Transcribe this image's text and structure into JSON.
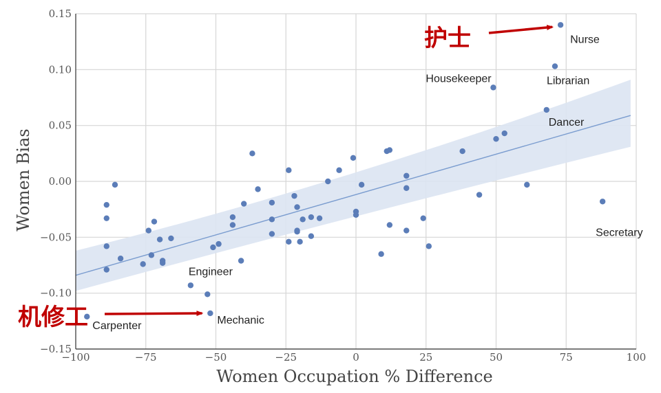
{
  "chart_data": {
    "type": "scatter",
    "xlabel": "Women Occupation % Difference",
    "ylabel": "Women Bias",
    "xlim": [
      -100,
      100
    ],
    "ylim": [
      -0.15,
      0.15
    ],
    "x_ticks": [
      -100,
      -75,
      -50,
      -25,
      0,
      25,
      50,
      75,
      100
    ],
    "y_ticks": [
      -0.15,
      -0.1,
      -0.05,
      0.0,
      0.05,
      0.1,
      0.15
    ],
    "x_tick_labels": [
      "−100",
      "−75",
      "−50",
      "−25",
      "0",
      "25",
      "50",
      "75",
      "100"
    ],
    "y_tick_labels": [
      "−0.15",
      "−0.10",
      "−0.05",
      "0.00",
      "0.05",
      "0.10",
      "0.15"
    ],
    "grid": true,
    "regression": {
      "x": [
        -100,
        98
      ],
      "y": [
        -0.084,
        0.059
      ],
      "ci_low": [
        -0.098,
        0.031
      ],
      "ci_high": [
        -0.062,
        0.091
      ]
    },
    "annotations": [
      {
        "text": "Nurse",
        "x": 73,
        "y": 0.14
      },
      {
        "text": "Librarian",
        "x": 71,
        "y": 0.103
      },
      {
        "text": "Housekeeper",
        "x": 49,
        "y": 0.084
      },
      {
        "text": "Dancer",
        "x": 68,
        "y": 0.064
      },
      {
        "text": "Secretary",
        "x": 88,
        "y": -0.018
      },
      {
        "text": "Engineer",
        "x": -59,
        "y": -0.093
      },
      {
        "text": "Mechanic",
        "x": -52,
        "y": -0.118
      },
      {
        "text": "Carpenter",
        "x": -96,
        "y": -0.121
      }
    ],
    "callouts": [
      {
        "text": "护士",
        "x": 73,
        "y": 0.14
      },
      {
        "text": "机修工",
        "x": -52,
        "y": -0.118
      }
    ],
    "points": [
      {
        "x": 73,
        "y": 0.14
      },
      {
        "x": 71,
        "y": 0.103
      },
      {
        "x": 49,
        "y": 0.084
      },
      {
        "x": 68,
        "y": 0.064
      },
      {
        "x": 53,
        "y": 0.043
      },
      {
        "x": 50,
        "y": 0.038
      },
      {
        "x": 38,
        "y": 0.027
      },
      {
        "x": 12,
        "y": 0.028
      },
      {
        "x": 11,
        "y": 0.027
      },
      {
        "x": -37,
        "y": 0.025
      },
      {
        "x": -1,
        "y": 0.021
      },
      {
        "x": -24,
        "y": 0.01
      },
      {
        "x": -6,
        "y": 0.01
      },
      {
        "x": 18,
        "y": 0.005
      },
      {
        "x": -10,
        "y": 0.0
      },
      {
        "x": 2,
        "y": -0.003
      },
      {
        "x": 61,
        "y": -0.003
      },
      {
        "x": 18,
        "y": -0.006
      },
      {
        "x": -35,
        "y": -0.007
      },
      {
        "x": -86,
        "y": -0.003
      },
      {
        "x": 44,
        "y": -0.012
      },
      {
        "x": -22,
        "y": -0.013
      },
      {
        "x": 88,
        "y": -0.018
      },
      {
        "x": -30,
        "y": -0.019
      },
      {
        "x": -40,
        "y": -0.02
      },
      {
        "x": -89,
        "y": -0.021
      },
      {
        "x": -21,
        "y": -0.023
      },
      {
        "x": 0,
        "y": -0.027
      },
      {
        "x": 0,
        "y": -0.03
      },
      {
        "x": -89,
        "y": -0.033
      },
      {
        "x": -44,
        "y": -0.032
      },
      {
        "x": -30,
        "y": -0.034
      },
      {
        "x": -19,
        "y": -0.034
      },
      {
        "x": -16,
        "y": -0.032
      },
      {
        "x": -13,
        "y": -0.033
      },
      {
        "x": 24,
        "y": -0.033
      },
      {
        "x": -72,
        "y": -0.036
      },
      {
        "x": -44,
        "y": -0.039
      },
      {
        "x": 12,
        "y": -0.039
      },
      {
        "x": -74,
        "y": -0.044
      },
      {
        "x": -21,
        "y": -0.044
      },
      {
        "x": -21,
        "y": -0.045
      },
      {
        "x": 18,
        "y": -0.044
      },
      {
        "x": -30,
        "y": -0.047
      },
      {
        "x": -16,
        "y": -0.049
      },
      {
        "x": -70,
        "y": -0.052
      },
      {
        "x": -66,
        "y": -0.051
      },
      {
        "x": -24,
        "y": -0.054
      },
      {
        "x": -20,
        "y": -0.054
      },
      {
        "x": -49,
        "y": -0.056
      },
      {
        "x": -51,
        "y": -0.059
      },
      {
        "x": -89,
        "y": -0.058
      },
      {
        "x": 26,
        "y": -0.058
      },
      {
        "x": -73,
        "y": -0.066
      },
      {
        "x": 9,
        "y": -0.065
      },
      {
        "x": -84,
        "y": -0.069
      },
      {
        "x": -41,
        "y": -0.071
      },
      {
        "x": -69,
        "y": -0.071
      },
      {
        "x": -69,
        "y": -0.073
      },
      {
        "x": -76,
        "y": -0.074
      },
      {
        "x": -89,
        "y": -0.079
      },
      {
        "x": -59,
        "y": -0.093
      },
      {
        "x": -53,
        "y": -0.101
      },
      {
        "x": -52,
        "y": -0.118
      },
      {
        "x": -96,
        "y": -0.121
      }
    ],
    "colors": {
      "point": "#5b7db8",
      "line": "#7a9ccf",
      "band": "#dce4f2",
      "grid": "#d6d6d6",
      "callout": "#c00000"
    }
  }
}
